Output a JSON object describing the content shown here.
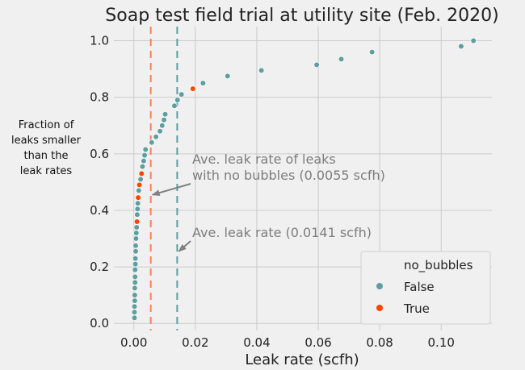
{
  "chart_data": {
    "type": "scatter",
    "title": "Soap test field trial at utility site (Feb. 2020)",
    "xlabel": "Leak rate (scfh)",
    "ylabel_lines": [
      "Fraction of",
      "leaks smaller",
      "than the",
      "leak rates"
    ],
    "xlim": [
      -0.0065,
      0.1165
    ],
    "ylim": [
      -0.025,
      1.05
    ],
    "xticks": [
      0.0,
      0.02,
      0.04,
      0.06,
      0.08,
      0.1
    ],
    "xtick_labels": [
      "0.00",
      "0.02",
      "0.04",
      "0.06",
      "0.08",
      "0.10"
    ],
    "yticks": [
      0.0,
      0.2,
      0.4,
      0.6,
      0.8,
      1.0
    ],
    "ytick_labels": [
      "0.0",
      "0.2",
      "0.4",
      "0.6",
      "0.8",
      "1.0"
    ],
    "grid": true,
    "legend": {
      "title": "no_bubbles",
      "placement": "bottom-right",
      "entries": [
        {
          "label": "False",
          "color": "#5f9ea0"
        },
        {
          "label": "True",
          "color": "#ff4500"
        }
      ]
    },
    "series": [
      {
        "name": "False",
        "color": "#5f9ea0",
        "points": [
          [
            0.0002,
            0.02
          ],
          [
            0.0002,
            0.04
          ],
          [
            0.0002,
            0.06
          ],
          [
            0.0003,
            0.08
          ],
          [
            0.0003,
            0.1
          ],
          [
            0.0003,
            0.125
          ],
          [
            0.0004,
            0.145
          ],
          [
            0.0004,
            0.165
          ],
          [
            0.0004,
            0.19
          ],
          [
            0.0005,
            0.21
          ],
          [
            0.0005,
            0.23
          ],
          [
            0.0006,
            0.255
          ],
          [
            0.0006,
            0.275
          ],
          [
            0.0007,
            0.3
          ],
          [
            0.0008,
            0.32
          ],
          [
            0.0009,
            0.34
          ],
          [
            0.0011,
            0.385
          ],
          [
            0.0012,
            0.405
          ],
          [
            0.0013,
            0.425
          ],
          [
            0.0016,
            0.47
          ],
          [
            0.0022,
            0.51
          ],
          [
            0.0028,
            0.555
          ],
          [
            0.0032,
            0.575
          ],
          [
            0.0035,
            0.595
          ],
          [
            0.0038,
            0.615
          ],
          [
            0.0058,
            0.64
          ],
          [
            0.0072,
            0.66
          ],
          [
            0.0085,
            0.68
          ],
          [
            0.0092,
            0.7
          ],
          [
            0.0098,
            0.72
          ],
          [
            0.0102,
            0.74
          ],
          [
            0.0132,
            0.77
          ],
          [
            0.0142,
            0.79
          ],
          [
            0.0155,
            0.81
          ],
          [
            0.0225,
            0.85
          ],
          [
            0.0305,
            0.875
          ],
          [
            0.0415,
            0.895
          ],
          [
            0.0595,
            0.915
          ],
          [
            0.0675,
            0.935
          ],
          [
            0.0775,
            0.96
          ],
          [
            0.1065,
            0.98
          ],
          [
            0.1105,
            1.0
          ]
        ]
      },
      {
        "name": "True",
        "color": "#ff4500",
        "points": [
          [
            0.001,
            0.36
          ],
          [
            0.0014,
            0.445
          ],
          [
            0.0018,
            0.49
          ],
          [
            0.0025,
            0.53
          ],
          [
            0.0192,
            0.83
          ]
        ]
      }
    ],
    "vlines": [
      {
        "x": 0.0055,
        "color": "#ff7f50",
        "annotation": "Ave. leak rate of leaks\nwith no bubbles (0.0055 scfh)"
      },
      {
        "x": 0.0141,
        "color": "#5f9ea0",
        "annotation": "Ave. leak rate (0.0141 scfh)"
      }
    ]
  }
}
